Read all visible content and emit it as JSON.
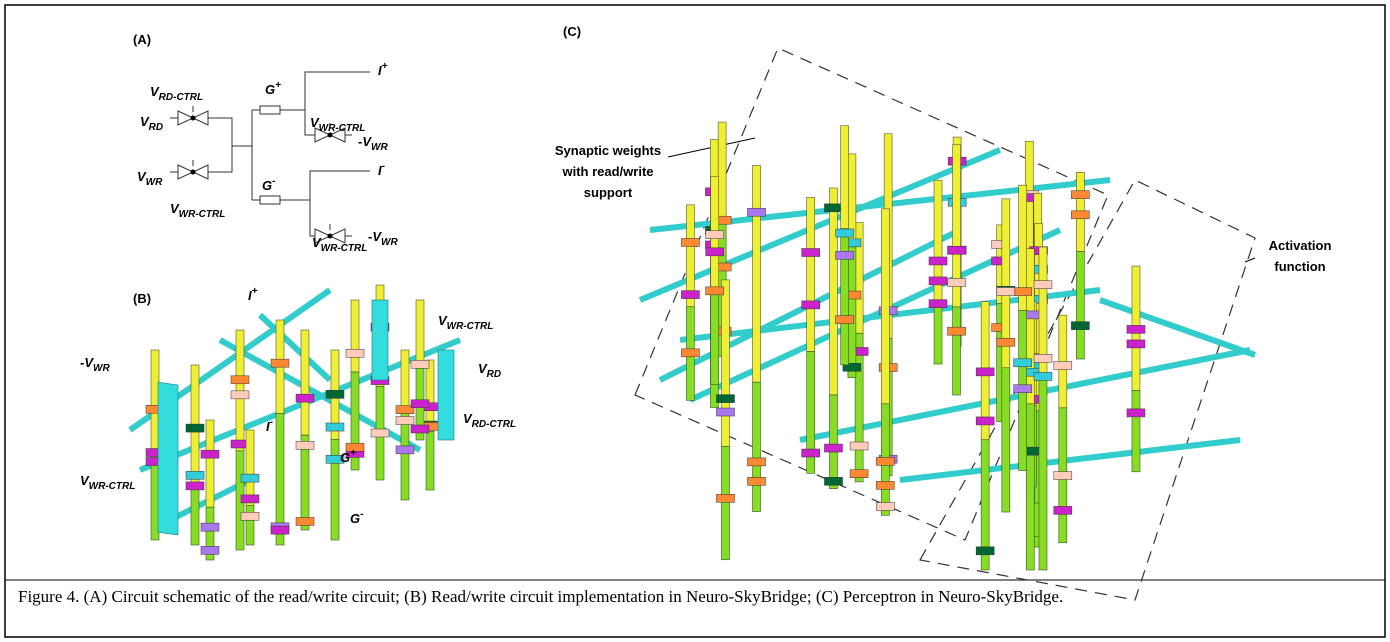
{
  "panels": {
    "a": {
      "tag": "(A)",
      "labels": [
        {
          "base": "V",
          "sub": "RD-CTRL"
        },
        {
          "base": "V",
          "sub": "RD"
        },
        {
          "base": "V",
          "sub": "WR"
        },
        {
          "base": "V",
          "sub": "WR-CTRL"
        },
        {
          "base": "G",
          "sup": "+"
        },
        {
          "base": "G",
          "sup": "-"
        },
        {
          "base": "I",
          "sup": "+"
        },
        {
          "base": "I",
          "sup": "-"
        },
        {
          "base": "V",
          "sub": "WR-CTRL"
        },
        {
          "base": "-V",
          "sub": "WR"
        },
        {
          "base": "V",
          "sub": "WR-CTRL"
        },
        {
          "base": "-V",
          "sub": "WR"
        }
      ]
    },
    "b": {
      "tag": "(B)",
      "labels": [
        {
          "base": "I",
          "sup": "+"
        },
        {
          "base": "V",
          "sub": "WR-CTRL"
        },
        {
          "base": "-V",
          "sub": "WR"
        },
        {
          "base": "V",
          "sub": "RD"
        },
        {
          "base": "I",
          "sup": "-"
        },
        {
          "base": "V",
          "sub": "RD-CTRL"
        },
        {
          "base": "G",
          "sup": "+"
        },
        {
          "base": "V",
          "sub": "WR-CTRL"
        },
        {
          "base": "G",
          "sup": "-"
        }
      ]
    },
    "c": {
      "tag": "(C)",
      "annotations": [
        [
          "Synaptic weights",
          "with read/write",
          "support"
        ],
        [
          "Activation",
          "function"
        ]
      ]
    }
  },
  "caption": "Figure 4. (A) Circuit schematic of the read/write circuit; (B) Read/write circuit implementation in Neuro-SkyBridge; (C) Perceptron in Neuro-SkyBridge."
}
